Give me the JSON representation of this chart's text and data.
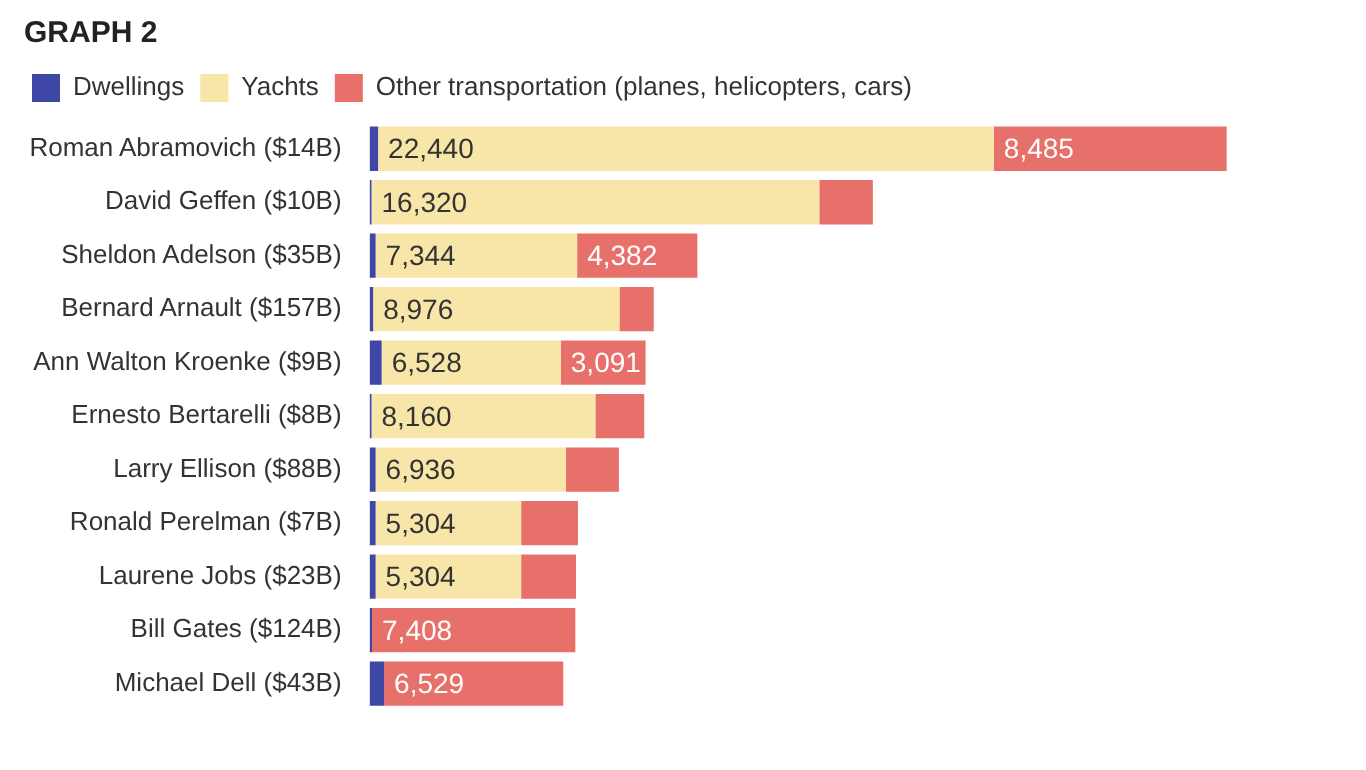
{
  "chart_data": {
    "type": "bar",
    "orientation": "horizontal",
    "stacked": true,
    "title": "GRAPH 2",
    "legend": "top left",
    "grid": false,
    "tick_labels": "y",
    "categories": [
      "Roman Abramovich ($14B)",
      "David Geffen ($10B)",
      "Sheldon Adelson ($35B)",
      "Bernard Arnault ($157B)",
      "Ann Walton Kroenke ($9B)",
      "Ernesto Bertarelli ($8B)",
      "Larry Ellison ($88B)",
      "Ronald Perelman ($7B)",
      "Laurene Jobs ($23B)",
      "Bill Gates ($124B)",
      "Michael Dell ($43B)"
    ],
    "series": [
      {
        "name": "Dwellings",
        "color": "#3f47a6",
        "values": [
          310,
          70,
          220,
          130,
          440,
          70,
          220,
          220,
          220,
          90,
          530
        ]
      },
      {
        "name": "Yachts",
        "color": "#f8e6a9",
        "values": [
          22440,
          16320,
          7344,
          8976,
          6528,
          8160,
          6936,
          5304,
          5304,
          0,
          0
        ],
        "value_labels": [
          "22,440",
          "16,320",
          "7,344",
          "8,976",
          "6,528",
          "8,160",
          "6,936",
          "5,304",
          "5,304",
          null,
          null
        ]
      },
      {
        "name": "Other transportation (planes, helicopters, cars)",
        "color": "#e8706a",
        "values": [
          8485,
          1950,
          4382,
          1250,
          3091,
          1780,
          1930,
          2070,
          2000,
          7408,
          6529
        ],
        "value_labels": [
          "8,485",
          null,
          "4,382",
          null,
          "3,091",
          null,
          null,
          null,
          null,
          "7,408",
          "6,529"
        ]
      }
    ]
  }
}
